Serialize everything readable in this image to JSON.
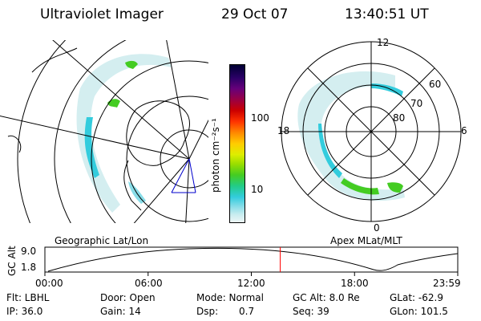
{
  "header": {
    "instrument": "Ultraviolet Imager",
    "date": "29 Oct 07",
    "time": "13:40:51 UT"
  },
  "left_panel": {
    "caption": "Geographic Lat/Lon"
  },
  "right_panel": {
    "caption": "Apex MLat/MLT",
    "mlt_labels": [
      "12",
      "18",
      "6",
      "0"
    ],
    "lat_labels": [
      "60",
      "70",
      "80"
    ]
  },
  "colorbar": {
    "unit": "photon cm⁻²s⁻¹",
    "ticks": [
      "100",
      "10"
    ],
    "colors": [
      "#000033",
      "#2a0066",
      "#66007a",
      "#990044",
      "#cc0000",
      "#ff3300",
      "#ff8800",
      "#ffcc00",
      "#ddee00",
      "#99dd00",
      "#44cc22",
      "#22cc88",
      "#33ccdd",
      "#88dde8",
      "#c8ecef",
      "#eef6f6"
    ]
  },
  "altitude_plot": {
    "ylabel": "GC Alt",
    "y_ticks": [
      "9.0",
      "1.8"
    ],
    "x_ticks": [
      "00:00",
      "06:00",
      "12:00",
      "18:00",
      "23:59"
    ],
    "current_time_marker_hours": 13.68,
    "marker_color": "#ff0000"
  },
  "info": {
    "flt": "Flt: LBHL",
    "ip": "IP: 36.0",
    "door": "Door: Open",
    "gain": "Gain: 14",
    "mode": "Mode: Normal",
    "dsp_label": "Dsp:",
    "dsp_value": "0.7",
    "gcalt": "GC Alt: 8.0 Re",
    "seq": "Seq: 39",
    "glat": "GLat: -62.9",
    "glon": "GLon: 101.5"
  }
}
